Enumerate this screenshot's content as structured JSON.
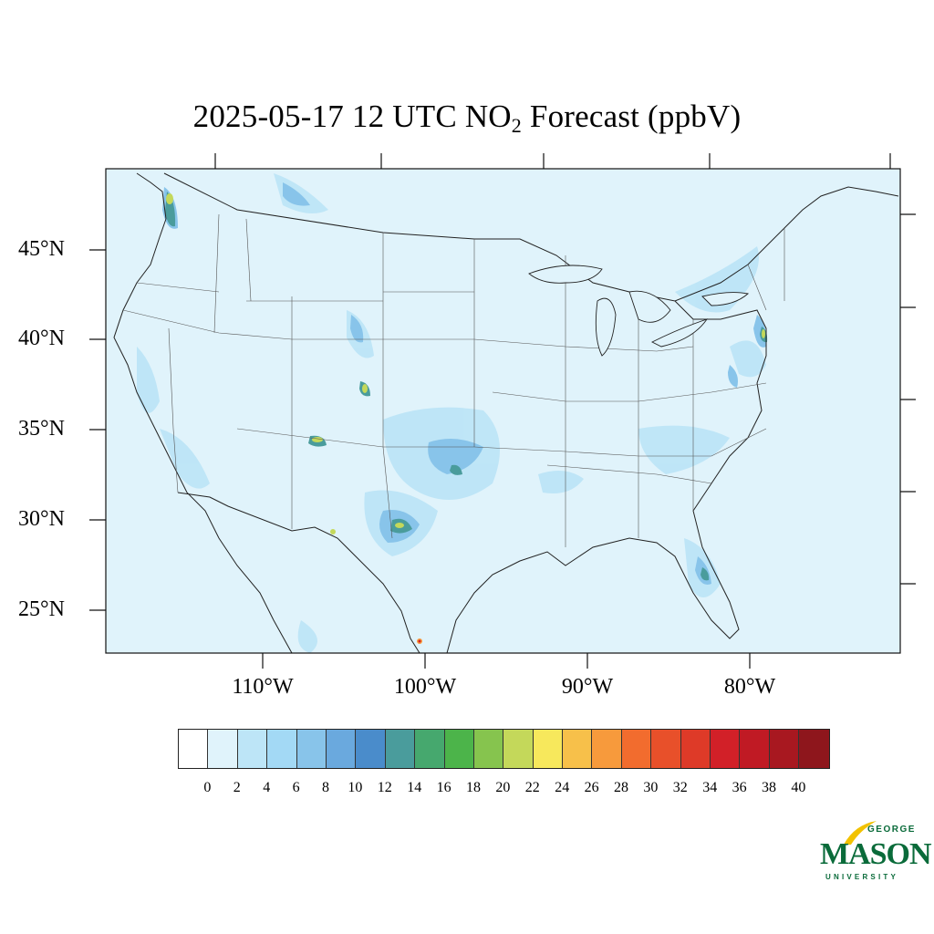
{
  "title": {
    "main": "2025-05-17 12 UTC NO",
    "subscript": "2",
    "rest": " Forecast (ppbV)"
  },
  "latitude_labels": [
    "45°N",
    "40°N",
    "35°N",
    "30°N",
    "25°N"
  ],
  "longitude_labels": [
    "110°W",
    "100°W",
    "90°W",
    "80°W"
  ],
  "colorbar": {
    "ticks": [
      "0",
      "2",
      "4",
      "6",
      "8",
      "10",
      "12",
      "14",
      "16",
      "18",
      "20",
      "22",
      "24",
      "26",
      "28",
      "30",
      "32",
      "34",
      "36",
      "38",
      "40"
    ],
    "colors": [
      "#ffffff",
      "#e0f3fb",
      "#bde5f7",
      "#a3d9f5",
      "#88c4ea",
      "#6aa9de",
      "#4a8ccb",
      "#4a9c9c",
      "#46a86e",
      "#4cb44a",
      "#86c44e",
      "#c4d85a",
      "#f7e85c",
      "#f7c04a",
      "#f79a3c",
      "#f26c2e",
      "#e8502a",
      "#de3a28",
      "#d22028",
      "#c01a24",
      "#a81820",
      "#8e161c"
    ]
  },
  "map_colors": {
    "background": "#e0f3fb",
    "land_fill": "#dff2fb",
    "low_plume": "#bde5f7",
    "mid_plume": "#88c4ea",
    "high_plume": "#4a9c9c",
    "hot_spot": "#c4d85a",
    "peak": "#f79a3c",
    "border_line": "#333333"
  },
  "logo": {
    "top": "GEORGE",
    "main": "MASON",
    "bottom": "UNIVERSITY"
  }
}
